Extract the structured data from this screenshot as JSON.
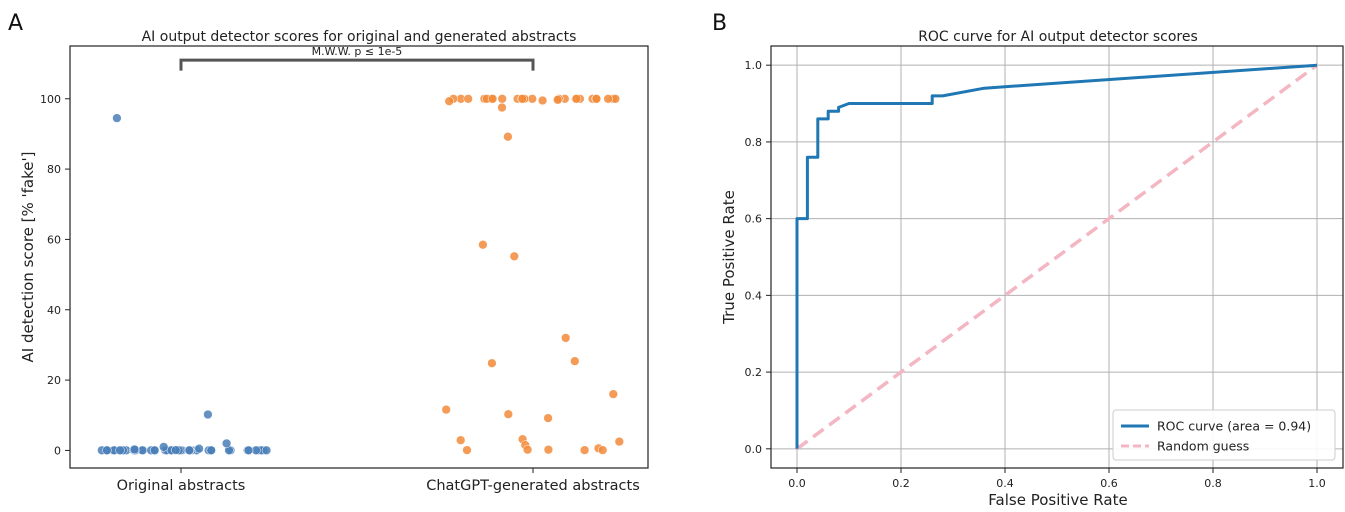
{
  "panels": [
    {
      "label": "A",
      "chart_data": {
        "type": "scatter",
        "title": "AI output detector scores for original and generated abstracts",
        "xlabel": "",
        "ylabel": "AI detection score [% 'fake']",
        "categories": [
          "Original abstracts",
          "ChatGPT-generated abstracts"
        ],
        "yticks": [
          0,
          20,
          40,
          60,
          80,
          100
        ],
        "ylim": [
          -5,
          115
        ],
        "grid": false,
        "annotation": {
          "text": "M.W.W. p ≤ 1e-5"
        },
        "colors": {
          "Original abstracts": "#4a7fb8",
          "ChatGPT-generated abstracts": "#f28b3a"
        },
        "series": [
          {
            "category": "Original abstracts",
            "values": [
              0.02,
              0.02,
              0.02,
              0.02,
              0.02,
              0.02,
              0.02,
              0.02,
              0.02,
              0.02,
              0.02,
              0.02,
              0.02,
              0.02,
              0.02,
              0.02,
              0.02,
              0.02,
              0.02,
              0.02,
              0.02,
              0.02,
              0.02,
              0.02,
              0.02,
              0.02,
              0.02,
              0.02,
              0.02,
              0.02,
              0.02,
              0.02,
              0.02,
              0.02,
              0.02,
              0.02,
              0.02,
              0.02,
              0.02,
              0.02,
              0.02,
              0.02,
              0.02,
              0.02,
              0.02,
              0.02,
              0.1,
              0.3,
              0.5,
              1.0,
              2.0,
              10.2,
              94.5
            ]
          },
          {
            "category": "ChatGPT-generated abstracts",
            "values": [
              100,
              100,
              100,
              100,
              100,
              100,
              100,
              100,
              100,
              100,
              100,
              100,
              100,
              100,
              100,
              100,
              100,
              100,
              100,
              100,
              100,
              100,
              100,
              100,
              100,
              100,
              99.7,
              99.5,
              99.3,
              97.5,
              89.2,
              58.5,
              55.2,
              32.0,
              25.4,
              24.8,
              16.0,
              11.6,
              10.3,
              9.2,
              3.2,
              2.9,
              2.5,
              1.5,
              0.6,
              0.2,
              0.2,
              0.1,
              0.1,
              0.1
            ]
          }
        ]
      }
    },
    {
      "label": "B",
      "chart_data": {
        "type": "line",
        "title": "ROC curve for AI output detector scores",
        "xlabel": "False Positive Rate",
        "ylabel": "True Positive Rate",
        "xlim": [
          -0.05,
          1.05
        ],
        "ylim": [
          -0.05,
          1.05
        ],
        "xticks": [
          "0.0",
          "0.2",
          "0.4",
          "0.6",
          "0.8",
          "1.0"
        ],
        "yticks": [
          "0.0",
          "0.2",
          "0.4",
          "0.6",
          "0.8",
          "1.0"
        ],
        "grid": true,
        "legend_position": "lower-right",
        "series": [
          {
            "name": "ROC curve (area = 0.94)",
            "color": "#1f77b4",
            "style": "solid",
            "x": [
              0,
              0,
              0.02,
              0.02,
              0.04,
              0.04,
              0.06,
              0.06,
              0.08,
              0.08,
              0.1,
              0.26,
              0.26,
              0.28,
              0.36,
              1.0
            ],
            "y": [
              0,
              0.6,
              0.6,
              0.76,
              0.76,
              0.86,
              0.86,
              0.88,
              0.88,
              0.89,
              0.9,
              0.9,
              0.92,
              0.92,
              0.94,
              1.0
            ]
          },
          {
            "name": "Random guess",
            "color": "#f4b6c2",
            "style": "dashed",
            "x": [
              0,
              1
            ],
            "y": [
              0,
              1
            ]
          }
        ]
      }
    }
  ]
}
